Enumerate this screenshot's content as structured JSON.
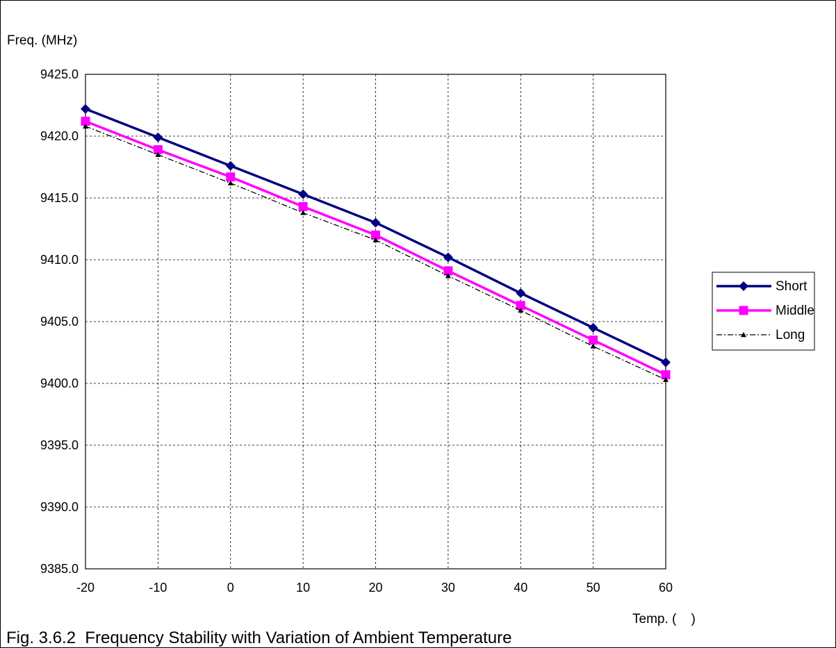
{
  "chart_data": {
    "type": "line",
    "ylabel": "Freq. (MHz)",
    "xlabel": "Temp. (    )",
    "caption": "Fig. 3.6.2  Frequency Stability with Variation of Ambient Temperature",
    "x": [
      -20,
      -10,
      0,
      10,
      20,
      30,
      40,
      50,
      60
    ],
    "x_tick_labels": [
      "-20",
      "-10",
      "0",
      "10",
      "20",
      "30",
      "40",
      "50",
      "60"
    ],
    "y_tick_labels": [
      "9385.0",
      "9390.0",
      "9395.0",
      "9400.0",
      "9405.0",
      "9410.0",
      "9415.0",
      "9420.0",
      "9425.0"
    ],
    "y_ticks": [
      9385,
      9390,
      9395,
      9400,
      9405,
      9410,
      9415,
      9420,
      9425
    ],
    "ylim": [
      9385,
      9425
    ],
    "xlim": [
      -20,
      60
    ],
    "grid": true,
    "legend_position": "right",
    "series": [
      {
        "name": "Short",
        "color": "#000080",
        "marker": "diamond",
        "line": "solid",
        "values": [
          9422.2,
          9419.9,
          9417.6,
          9415.3,
          9413.0,
          9410.2,
          9407.3,
          9404.5,
          9401.7
        ]
      },
      {
        "name": "Middle",
        "color": "#ff00ff",
        "marker": "square",
        "line": "solid",
        "values": [
          9421.2,
          9418.9,
          9416.7,
          9414.3,
          9412.0,
          9409.1,
          9406.3,
          9403.5,
          9400.7
        ]
      },
      {
        "name": "Long",
        "color": "#000000",
        "marker": "triangle",
        "line": "dashdot",
        "values": [
          9420.8,
          9418.5,
          9416.2,
          9413.8,
          9411.6,
          9408.7,
          9405.9,
          9403.0,
          9400.3
        ]
      }
    ]
  }
}
